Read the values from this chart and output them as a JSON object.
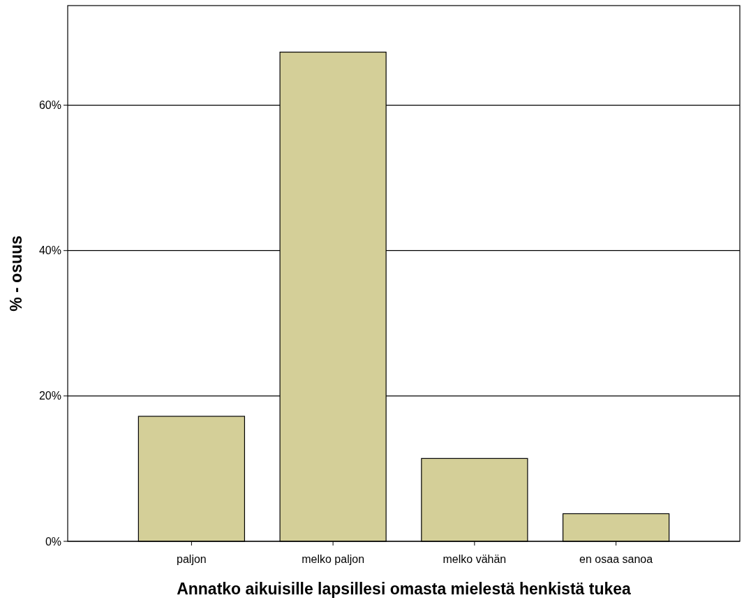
{
  "chart_data": {
    "type": "bar",
    "xlabel": "Annatko aikuisille lapsillesi omasta mielestä henkistä tukea",
    "ylabel": "% - osuus",
    "categories": [
      "paljon",
      "melko paljon",
      "melko vähän",
      "en osaa sanoa"
    ],
    "values": [
      17.2,
      67.3,
      11.4,
      3.8
    ],
    "color": "#d4cf98",
    "ylim": [
      0,
      73.7
    ],
    "yticks": [
      {
        "value": 0,
        "label": "0%"
      },
      {
        "value": 20,
        "label": "20%"
      },
      {
        "value": 40,
        "label": "40%"
      },
      {
        "value": 60,
        "label": "60%"
      }
    ],
    "grid": "y"
  }
}
